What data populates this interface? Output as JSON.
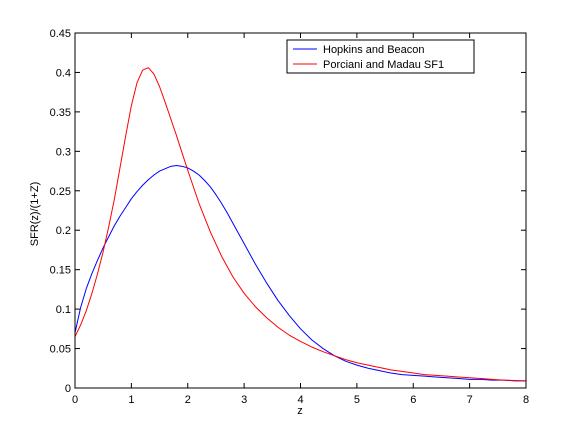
{
  "chart_data": {
    "type": "line",
    "title": "",
    "xlabel": "z",
    "ylabel": "SFR(z)/(1+Z)",
    "xlim": [
      0,
      8
    ],
    "ylim": [
      0,
      0.45
    ],
    "xticks": [
      0,
      1,
      2,
      3,
      4,
      5,
      6,
      7,
      8
    ],
    "xtick_labels": [
      "0",
      "1",
      "2",
      "3",
      "4",
      "5",
      "6",
      "7",
      "8"
    ],
    "yticks": [
      0,
      0.05,
      0.1,
      0.15,
      0.2,
      0.25,
      0.3,
      0.35,
      0.4,
      0.45
    ],
    "ytick_labels": [
      "0",
      "0.05",
      "0.1",
      "0.15",
      "0.2",
      "0.25",
      "0.3",
      "0.35",
      "0.4",
      "0.45"
    ],
    "grid": false,
    "legend_position": "top-right",
    "series": [
      {
        "name": "Hopkins and Beacon",
        "color": "#0000ff",
        "x": [
          0,
          0.1,
          0.2,
          0.3,
          0.4,
          0.5,
          0.6,
          0.7,
          0.8,
          0.9,
          1.0,
          1.1,
          1.2,
          1.3,
          1.4,
          1.5,
          1.6,
          1.7,
          1.8,
          1.9,
          2.0,
          2.1,
          2.2,
          2.3,
          2.4,
          2.5,
          2.6,
          2.7,
          2.8,
          2.9,
          3.0,
          3.2,
          3.4,
          3.6,
          3.8,
          4.0,
          4.2,
          4.4,
          4.6,
          4.8,
          5.0,
          5.2,
          5.4,
          5.6,
          5.8,
          6.0,
          6.2,
          6.4,
          6.6,
          6.8,
          7.0,
          7.2,
          7.4,
          7.6,
          7.8,
          8.0
        ],
        "y": [
          0.07,
          0.102,
          0.126,
          0.145,
          0.162,
          0.178,
          0.192,
          0.206,
          0.218,
          0.229,
          0.24,
          0.249,
          0.257,
          0.264,
          0.27,
          0.275,
          0.278,
          0.281,
          0.282,
          0.281,
          0.279,
          0.275,
          0.27,
          0.263,
          0.255,
          0.245,
          0.234,
          0.222,
          0.209,
          0.196,
          0.183,
          0.157,
          0.133,
          0.111,
          0.092,
          0.075,
          0.061,
          0.05,
          0.041,
          0.034,
          0.029,
          0.025,
          0.022,
          0.019,
          0.017,
          0.016,
          0.015,
          0.014,
          0.013,
          0.012,
          0.011,
          0.011,
          0.01,
          0.01,
          0.009,
          0.009
        ]
      },
      {
        "name": "Porciani and Madau SF1",
        "color": "#ff0000",
        "x": [
          0,
          0.1,
          0.2,
          0.3,
          0.4,
          0.5,
          0.6,
          0.7,
          0.8,
          0.9,
          1.0,
          1.1,
          1.2,
          1.3,
          1.4,
          1.5,
          1.6,
          1.7,
          1.8,
          1.9,
          2.0,
          2.2,
          2.4,
          2.6,
          2.8,
          3.0,
          3.2,
          3.4,
          3.6,
          3.8,
          4.0,
          4.2,
          4.4,
          4.6,
          4.8,
          5.0,
          5.2,
          5.4,
          5.6,
          5.8,
          6.0,
          6.2,
          6.4,
          6.6,
          6.8,
          7.0,
          7.2,
          7.4,
          7.6,
          7.8,
          8.0
        ],
        "y": [
          0.065,
          0.08,
          0.098,
          0.12,
          0.145,
          0.173,
          0.205,
          0.24,
          0.28,
          0.32,
          0.358,
          0.387,
          0.403,
          0.406,
          0.398,
          0.382,
          0.362,
          0.341,
          0.32,
          0.298,
          0.276,
          0.234,
          0.198,
          0.167,
          0.141,
          0.12,
          0.103,
          0.089,
          0.077,
          0.067,
          0.059,
          0.052,
          0.046,
          0.041,
          0.036,
          0.032,
          0.029,
          0.026,
          0.023,
          0.021,
          0.019,
          0.017,
          0.016,
          0.015,
          0.014,
          0.013,
          0.012,
          0.011,
          0.01,
          0.0095,
          0.009
        ]
      }
    ]
  }
}
